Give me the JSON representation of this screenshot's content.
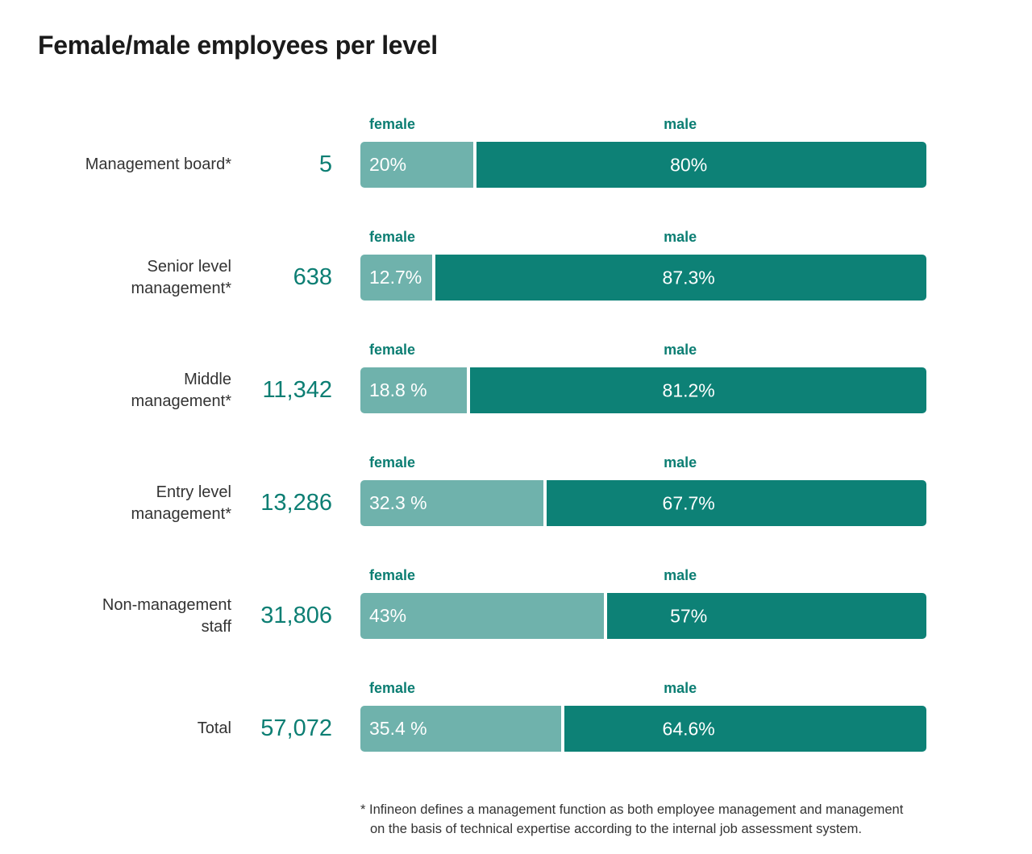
{
  "title": "Female/male employees per level",
  "colors": {
    "female_bar": "#6FB2AC",
    "male_bar": "#0D8176",
    "teal_text": "#0C7E73",
    "title_text": "#1B1B1B",
    "label_text": "#333333"
  },
  "legend": {
    "female": "female",
    "male": "male"
  },
  "chart_data": {
    "type": "bar",
    "orientation": "horizontal",
    "stacked": true,
    "unit": "%",
    "xlim": [
      0,
      100
    ],
    "title": "Female/male employees per level",
    "categories": [
      "Management board*",
      "Senior level management*",
      "Middle management*",
      "Entry level management*",
      "Non-management staff",
      "Total"
    ],
    "employee_counts": [
      5,
      638,
      11342,
      13286,
      31806,
      57072
    ],
    "series": [
      {
        "name": "female",
        "values": [
          20,
          12.7,
          18.8,
          32.3,
          43,
          35.4
        ]
      },
      {
        "name": "male",
        "values": [
          80,
          87.3,
          81.2,
          67.7,
          57,
          64.6
        ]
      }
    ],
    "rows": [
      {
        "label_lines": [
          "Management board*"
        ],
        "count_display": "5",
        "female_value": 20,
        "male_value": 80,
        "female_display": "20%",
        "male_display": "80%"
      },
      {
        "label_lines": [
          "Senior level",
          "management*"
        ],
        "count_display": "638",
        "female_value": 12.7,
        "male_value": 87.3,
        "female_display": "12.7%",
        "male_display": "87.3%"
      },
      {
        "label_lines": [
          "Middle",
          "management*"
        ],
        "count_display": "11,342",
        "female_value": 18.8,
        "male_value": 81.2,
        "female_display": "18.8 %",
        "male_display": "81.2%"
      },
      {
        "label_lines": [
          "Entry level",
          "management*"
        ],
        "count_display": "13,286",
        "female_value": 32.3,
        "male_value": 67.7,
        "female_display": "32.3 %",
        "male_display": "67.7%"
      },
      {
        "label_lines": [
          "Non-management",
          "staff"
        ],
        "count_display": "31,806",
        "female_value": 43,
        "male_value": 57,
        "female_display": "43%",
        "male_display": "57%"
      },
      {
        "label_lines": [
          "Total"
        ],
        "count_display": "57,072",
        "female_value": 35.4,
        "male_value": 64.6,
        "female_display": "35.4 %",
        "male_display": "64.6%"
      }
    ],
    "footnote": "* Infineon defines a management function as both employee management and management\non the basis of technical expertise according to the internal job assessment system."
  }
}
